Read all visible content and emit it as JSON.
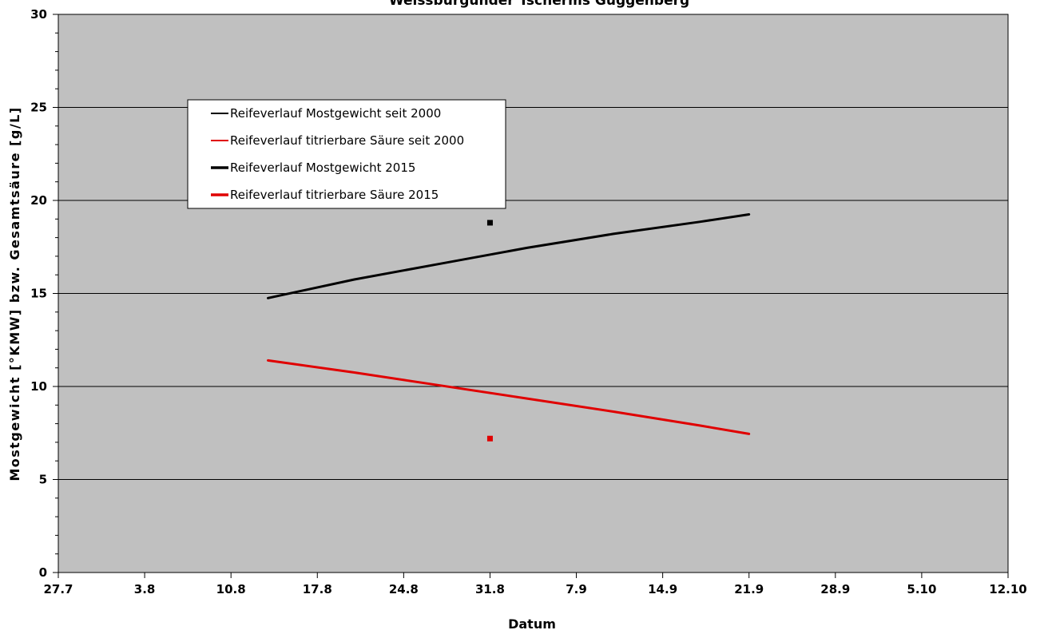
{
  "chart_data": {
    "type": "line",
    "title": "Weissburgunder Tscherms Guggenberg",
    "xlabel": "Datum",
    "ylabel": "Mostgewicht [°KMW] bzw. Gesamtsäure [g/L]",
    "x_tick_labels": [
      "27.7",
      "3.8",
      "10.8",
      "17.8",
      "24.8",
      "31.8",
      "7.9",
      "14.9",
      "21.9",
      "28.9",
      "5.10",
      "12.10"
    ],
    "y_tick_labels": [
      "0",
      "5",
      "10",
      "15",
      "20",
      "25",
      "30"
    ],
    "xlim": [
      "2015-07-27",
      "2015-10-12"
    ],
    "ylim": [
      0,
      30
    ],
    "grid": "horizontal major",
    "legend_position": "top-left",
    "background_color": "#c0c0c0",
    "series": [
      {
        "name": "Reifeverlauf Mostgewicht seit 2000",
        "color": "#000000",
        "style": "line",
        "x": [
          "2015-08-13",
          "2015-08-20",
          "2015-08-27",
          "2015-09-03",
          "2015-09-10",
          "2015-09-17",
          "2015-09-21"
        ],
        "y": [
          14.75,
          15.75,
          16.6,
          17.45,
          18.2,
          18.85,
          19.25
        ]
      },
      {
        "name": "Reifeverlauf titrierbare Säure seit 2000",
        "color": "#e00000",
        "style": "line",
        "x": [
          "2015-08-13",
          "2015-08-20",
          "2015-08-27",
          "2015-09-03",
          "2015-09-10",
          "2015-09-17",
          "2015-09-21"
        ],
        "y": [
          11.4,
          10.75,
          10.05,
          9.35,
          8.65,
          7.9,
          7.45
        ]
      },
      {
        "name": "Reifeverlauf Mostgewicht 2015",
        "color": "#000000",
        "style": "marker",
        "x": [
          "2015-08-31"
        ],
        "y": [
          18.8
        ]
      },
      {
        "name": "Reifeverlauf titrierbare Säure 2015",
        "color": "#e00000",
        "style": "marker",
        "x": [
          "2015-08-31"
        ],
        "y": [
          7.2
        ]
      }
    ]
  }
}
